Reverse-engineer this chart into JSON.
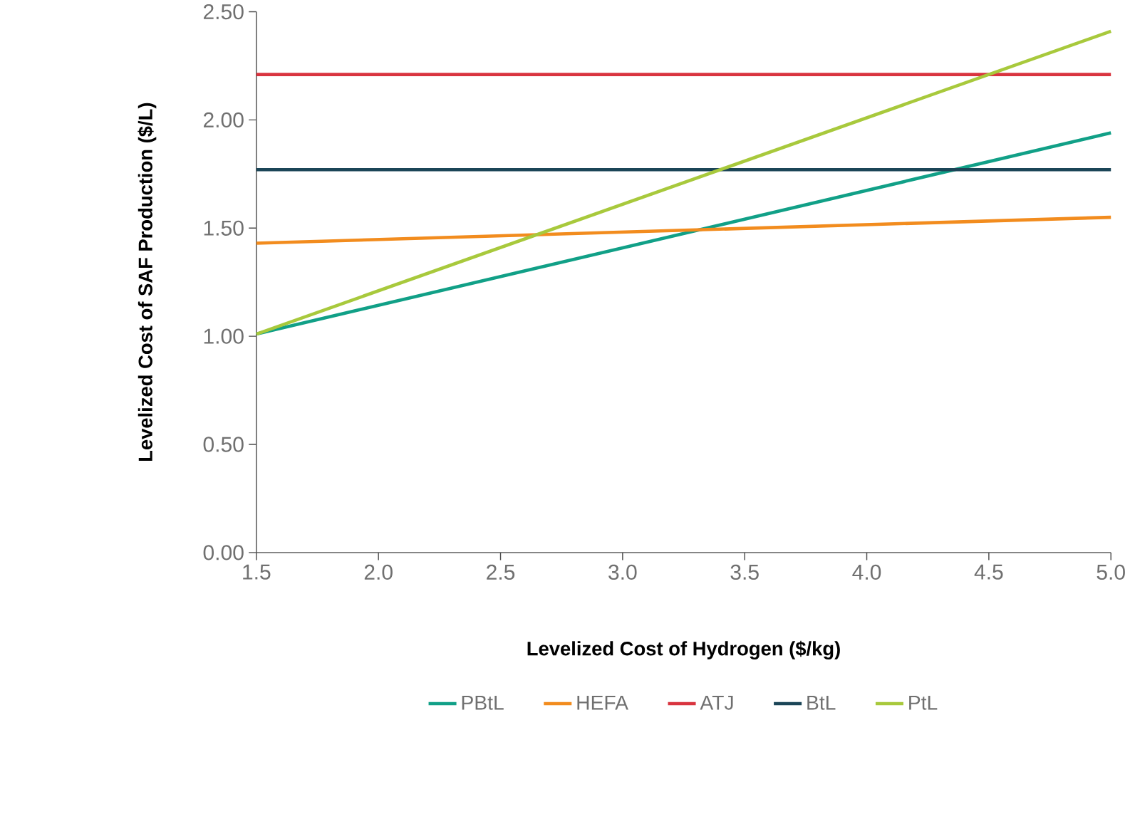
{
  "chart_data": {
    "type": "line",
    "xlabel": "Levelized Cost of Hydrogen ($/kg)",
    "ylabel": "Levelized Cost of SAF Production ($/L)",
    "x": [
      1.5,
      5.0
    ],
    "series": [
      {
        "name": "PBtL",
        "color": "#11a087",
        "values": [
          1.01,
          1.94
        ]
      },
      {
        "name": "HEFA",
        "color": "#f28c1e",
        "values": [
          1.43,
          1.55
        ]
      },
      {
        "name": "ATJ",
        "color": "#d9343f",
        "values": [
          2.21,
          2.21
        ]
      },
      {
        "name": "BtL",
        "color": "#1b4557",
        "values": [
          1.77,
          1.77
        ]
      },
      {
        "name": "PtL",
        "color": "#a8c93c",
        "values": [
          1.01,
          2.41
        ]
      }
    ],
    "xlim": [
      1.5,
      5.0
    ],
    "ylim": [
      0,
      2.5
    ],
    "xticks": [
      {
        "value": 1.5,
        "label": "1.5"
      },
      {
        "value": 2.0,
        "label": "2.0"
      },
      {
        "value": 2.5,
        "label": "2.5"
      },
      {
        "value": 3.0,
        "label": "3.0"
      },
      {
        "value": 3.5,
        "label": "3.5"
      },
      {
        "value": 4.0,
        "label": "4.0"
      },
      {
        "value": 4.5,
        "label": "4.5"
      },
      {
        "value": 5.0,
        "label": "5.0"
      }
    ],
    "yticks": [
      {
        "value": 0,
        "label": "0.00"
      },
      {
        "value": 0.5,
        "label": "0.50"
      },
      {
        "value": 1.0,
        "label": "1.00"
      },
      {
        "value": 1.5,
        "label": "1.50"
      },
      {
        "value": 2.0,
        "label": "2.00"
      },
      {
        "value": 2.5,
        "label": "2.50"
      }
    ],
    "grid": false,
    "legend": "bottom",
    "marker": "none",
    "line_style": "solid"
  }
}
